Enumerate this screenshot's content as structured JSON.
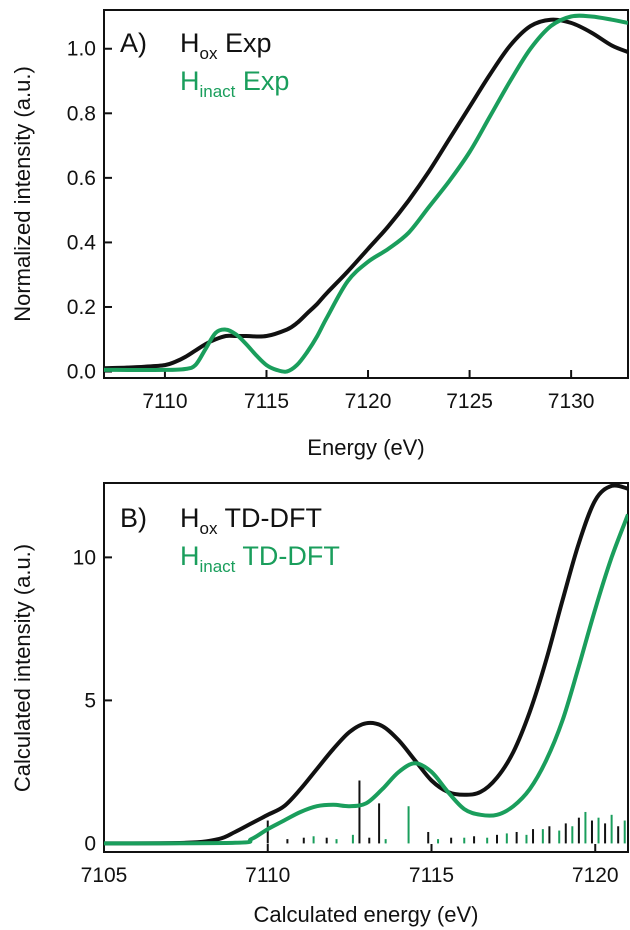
{
  "colors": {
    "black": "#111111",
    "green": "#1a9e5c",
    "frame": "#111111"
  },
  "chart_data": [
    {
      "type": "line",
      "panel_label": "A)",
      "xlabel": "Energy (eV)",
      "ylabel": "Normalized intensity (a.u.)",
      "xlim": [
        7107,
        7132.8
      ],
      "ylim": [
        -0.02,
        1.12
      ],
      "xticks": [
        "7110",
        "7115",
        "7120",
        "7125",
        "7130"
      ],
      "xtick_values": [
        7110,
        7115,
        7120,
        7125,
        7130
      ],
      "yticks": [
        "0.0",
        "0.2",
        "0.4",
        "0.6",
        "0.8",
        "1.0"
      ],
      "ytick_values": [
        0,
        0.2,
        0.4,
        0.6,
        0.8,
        1.0
      ],
      "legend": [
        {
          "base": "H",
          "sub": "ox",
          "rest": " Exp",
          "color": "#111111"
        },
        {
          "base": "H",
          "sub": "inact",
          "rest": " Exp",
          "color": "#1a9e5c"
        }
      ],
      "series": [
        {
          "color": "#111111",
          "x": [
            7107,
            7108,
            7109,
            7110,
            7110.5,
            7111,
            7111.5,
            7112,
            7112.5,
            7113,
            7113.5,
            7114,
            7115,
            7116,
            7116.5,
            7117,
            7117.5,
            7118,
            7119,
            7120,
            7121,
            7122,
            7123,
            7124,
            7125,
            7126,
            7127,
            7128,
            7129,
            7130,
            7131,
            7132,
            7132.8
          ],
          "y": [
            0.01,
            0.012,
            0.015,
            0.02,
            0.03,
            0.045,
            0.065,
            0.085,
            0.1,
            0.11,
            0.11,
            0.11,
            0.11,
            0.13,
            0.15,
            0.18,
            0.21,
            0.245,
            0.31,
            0.38,
            0.45,
            0.53,
            0.62,
            0.72,
            0.82,
            0.92,
            1.01,
            1.07,
            1.09,
            1.08,
            1.05,
            1.01,
            0.99
          ]
        },
        {
          "color": "#1a9e5c",
          "x": [
            7107,
            7110,
            7111,
            7111.5,
            7112,
            7112.5,
            7113,
            7113.5,
            7114,
            7114.5,
            7115,
            7115.5,
            7116,
            7116.5,
            7117,
            7117.5,
            7118,
            7119,
            7120,
            7121,
            7122,
            7123,
            7124,
            7125,
            7126,
            7127,
            7128,
            7129,
            7130,
            7131,
            7132,
            7132.8
          ],
          "y": [
            0.005,
            0.005,
            0.008,
            0.02,
            0.07,
            0.12,
            0.13,
            0.115,
            0.085,
            0.05,
            0.02,
            0.005,
            0.0,
            0.02,
            0.06,
            0.11,
            0.17,
            0.28,
            0.34,
            0.38,
            0.43,
            0.51,
            0.59,
            0.68,
            0.79,
            0.9,
            1.0,
            1.07,
            1.1,
            1.1,
            1.09,
            1.08
          ]
        }
      ]
    },
    {
      "type": "line",
      "panel_label": "B)",
      "xlabel": "Calculated energy (eV)",
      "ylabel": "Calculated intensity (a.u.)",
      "xlim": [
        7105,
        7121
      ],
      "ylim": [
        -0.3,
        12.6
      ],
      "xticks": [
        "7105",
        "7110",
        "7115",
        "7120"
      ],
      "xtick_values": [
        7105,
        7110,
        7115,
        7120
      ],
      "yticks": [
        "0",
        "5",
        "10"
      ],
      "ytick_values": [
        0,
        5,
        10
      ],
      "legend": [
        {
          "base": "H",
          "sub": "ox",
          "rest": " TD-DFT",
          "color": "#111111"
        },
        {
          "base": "H",
          "sub": "inact",
          "rest": " TD-DFT",
          "color": "#1a9e5c"
        }
      ],
      "series": [
        {
          "color": "#111111",
          "x": [
            7105,
            7107.5,
            7108.5,
            7109,
            7109.5,
            7110,
            7110.5,
            7111,
            7111.5,
            7112,
            7112.5,
            7113,
            7113.5,
            7114,
            7114.5,
            7115,
            7115.5,
            7116,
            7116.5,
            7117,
            7117.5,
            7118,
            7118.5,
            7119,
            7119.5,
            7120,
            7120.5,
            7121
          ],
          "y": [
            0,
            0.02,
            0.15,
            0.4,
            0.7,
            1.0,
            1.3,
            1.9,
            2.6,
            3.3,
            3.9,
            4.2,
            4.1,
            3.6,
            2.9,
            2.2,
            1.8,
            1.7,
            1.8,
            2.3,
            3.2,
            4.6,
            6.4,
            8.5,
            10.5,
            12.0,
            12.5,
            12.4
          ]
        },
        {
          "color": "#1a9e5c",
          "x": [
            7105,
            7109,
            7109.5,
            7110,
            7110.5,
            7111,
            7111.5,
            7112,
            7112.5,
            7113,
            7113.5,
            7114,
            7114.5,
            7115,
            7115.5,
            7116,
            7116.5,
            7117,
            7117.5,
            7118,
            7118.5,
            7119,
            7119.5,
            7120,
            7120.5,
            7121
          ],
          "y": [
            0,
            0.02,
            0.15,
            0.5,
            0.8,
            1.1,
            1.3,
            1.35,
            1.3,
            1.4,
            1.9,
            2.5,
            2.8,
            2.5,
            1.8,
            1.2,
            1.0,
            1.0,
            1.3,
            1.9,
            2.9,
            4.3,
            6.2,
            8.2,
            10.0,
            11.5
          ]
        }
      ],
      "sticks": [
        {
          "x": 7110.0,
          "h": 0.8,
          "color": "#111111"
        },
        {
          "x": 7110.6,
          "h": 0.15,
          "color": "#111111"
        },
        {
          "x": 7111.1,
          "h": 0.2,
          "color": "#111111"
        },
        {
          "x": 7111.4,
          "h": 0.25,
          "color": "#1a9e5c"
        },
        {
          "x": 7111.8,
          "h": 0.2,
          "color": "#111111"
        },
        {
          "x": 7112.1,
          "h": 0.15,
          "color": "#1a9e5c"
        },
        {
          "x": 7112.6,
          "h": 0.3,
          "color": "#1a9e5c"
        },
        {
          "x": 7112.8,
          "h": 2.2,
          "color": "#111111"
        },
        {
          "x": 7113.1,
          "h": 0.2,
          "color": "#111111"
        },
        {
          "x": 7113.4,
          "h": 1.4,
          "color": "#111111"
        },
        {
          "x": 7113.6,
          "h": 0.15,
          "color": "#1a9e5c"
        },
        {
          "x": 7114.3,
          "h": 1.3,
          "color": "#1a9e5c"
        },
        {
          "x": 7114.9,
          "h": 0.4,
          "color": "#111111"
        },
        {
          "x": 7115.2,
          "h": 0.15,
          "color": "#1a9e5c"
        },
        {
          "x": 7115.6,
          "h": 0.2,
          "color": "#111111"
        },
        {
          "x": 7116.0,
          "h": 0.2,
          "color": "#1a9e5c"
        },
        {
          "x": 7116.3,
          "h": 0.25,
          "color": "#111111"
        },
        {
          "x": 7116.7,
          "h": 0.2,
          "color": "#1a9e5c"
        },
        {
          "x": 7117.0,
          "h": 0.3,
          "color": "#111111"
        },
        {
          "x": 7117.3,
          "h": 0.35,
          "color": "#1a9e5c"
        },
        {
          "x": 7117.6,
          "h": 0.4,
          "color": "#111111"
        },
        {
          "x": 7117.9,
          "h": 0.3,
          "color": "#1a9e5c"
        },
        {
          "x": 7118.1,
          "h": 0.5,
          "color": "#111111"
        },
        {
          "x": 7118.4,
          "h": 0.5,
          "color": "#1a9e5c"
        },
        {
          "x": 7118.6,
          "h": 0.6,
          "color": "#111111"
        },
        {
          "x": 7118.9,
          "h": 0.45,
          "color": "#1a9e5c"
        },
        {
          "x": 7119.1,
          "h": 0.7,
          "color": "#111111"
        },
        {
          "x": 7119.3,
          "h": 0.6,
          "color": "#1a9e5c"
        },
        {
          "x": 7119.5,
          "h": 0.9,
          "color": "#111111"
        },
        {
          "x": 7119.7,
          "h": 1.1,
          "color": "#1a9e5c"
        },
        {
          "x": 7119.9,
          "h": 0.8,
          "color": "#111111"
        },
        {
          "x": 7120.1,
          "h": 0.9,
          "color": "#1a9e5c"
        },
        {
          "x": 7120.3,
          "h": 0.7,
          "color": "#111111"
        },
        {
          "x": 7120.5,
          "h": 1.0,
          "color": "#1a9e5c"
        },
        {
          "x": 7120.7,
          "h": 0.6,
          "color": "#111111"
        },
        {
          "x": 7120.9,
          "h": 0.8,
          "color": "#1a9e5c"
        }
      ]
    }
  ]
}
